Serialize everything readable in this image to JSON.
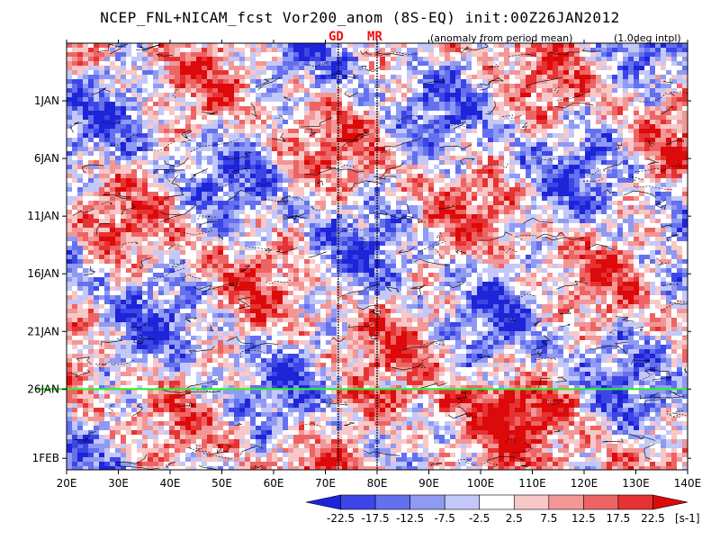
{
  "chart_data": {
    "type": "heatmap",
    "title": "NCEP_FNL+NICAM_fcst Vor200_anom (8S-EQ) init:00Z26JAN2012",
    "subtitle_left": "(anomaly from period mean)",
    "subtitle_right": "(1.0deg intpl)",
    "x_axis": {
      "range": [
        20,
        140
      ],
      "ticks": [
        "20E",
        "30E",
        "40E",
        "50E",
        "60E",
        "70E",
        "80E",
        "90E",
        "100E",
        "110E",
        "120E",
        "130E",
        "140E"
      ],
      "tick_values": [
        20,
        30,
        40,
        50,
        60,
        70,
        80,
        90,
        100,
        110,
        120,
        130,
        140
      ]
    },
    "y_axis": {
      "ticks": [
        "1JAN",
        "6JAN",
        "11JAN",
        "16JAN",
        "21JAN",
        "26JAN",
        "1FEB"
      ],
      "tick_dates": [
        "2012-01-01",
        "2012-01-06",
        "2012-01-11",
        "2012-01-16",
        "2012-01-21",
        "2012-01-26",
        "2012-02-01"
      ],
      "range": [
        "2011-12-27",
        "2012-02-02"
      ],
      "direction": "time increases downward"
    },
    "init_line": {
      "date": "2012-01-26",
      "color": "#33ee33"
    },
    "markers": [
      {
        "label": "GD",
        "lon": 72.5,
        "color": "#ee1111"
      },
      {
        "label": "MR",
        "lon": 80,
        "color": "#ee1111"
      }
    ],
    "colorbar": {
      "levels": [
        "-22.5",
        "-17.5",
        "-12.5",
        "-7.5",
        "-2.5",
        "2.5",
        "7.5",
        "12.5",
        "17.5",
        "22.5"
      ],
      "unit": "[s-1]",
      "colors": [
        "#1e24d8",
        "#3c46e6",
        "#6470ee",
        "#8f9af2",
        "#c3c8f8",
        "#ffffff",
        "#f8c8c8",
        "#f29696",
        "#ee6464",
        "#e63232",
        "#dc0a0a"
      ]
    }
  }
}
